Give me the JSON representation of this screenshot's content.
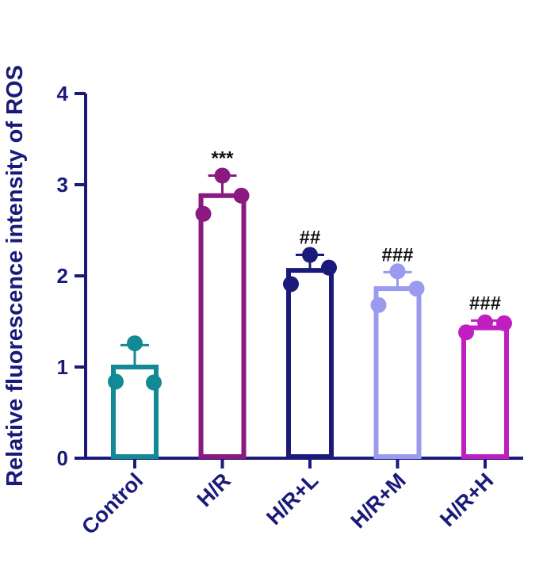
{
  "chart_data": {
    "type": "bar",
    "ylabel": "Relative fluorescence intensity of ROS",
    "ylim": [
      0,
      4
    ],
    "yticks": [
      0,
      1,
      2,
      3,
      4
    ],
    "axis_color": "#1a1a7a",
    "bars": [
      {
        "category": "Control",
        "mean": 1.0,
        "sd": 0.24,
        "points": [
          1.26,
          0.83,
          0.84
        ],
        "color": "#128a96",
        "annotation": ""
      },
      {
        "category": "H/R",
        "mean": 2.88,
        "sd": 0.22,
        "points": [
          3.1,
          2.88,
          2.68
        ],
        "color": "#8a1a80",
        "annotation": "***"
      },
      {
        "category": "H/R+L",
        "mean": 2.06,
        "sd": 0.17,
        "points": [
          2.23,
          2.09,
          1.91
        ],
        "color": "#1a1a7a",
        "annotation": "##"
      },
      {
        "category": "H/R+M",
        "mean": 1.86,
        "sd": 0.18,
        "points": [
          2.05,
          1.86,
          1.68
        ],
        "color": "#9a9aee",
        "annotation": "###"
      },
      {
        "category": "H/R+H",
        "mean": 1.43,
        "sd": 0.08,
        "points": [
          1.49,
          1.48,
          1.38
        ],
        "color": "#c01ec0",
        "annotation": "###"
      }
    ]
  }
}
